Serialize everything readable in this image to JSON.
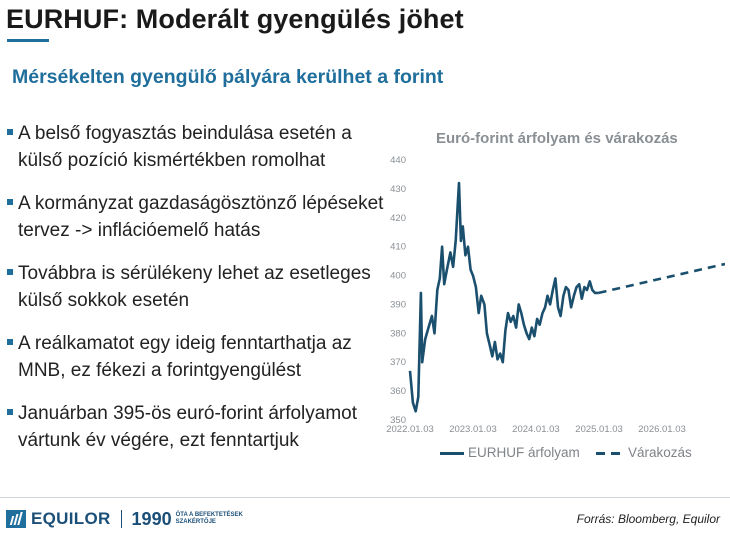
{
  "slide": {
    "title": "EURHUF: Moderált gyengülés jöhet",
    "subtitle": "Mérsékelten gyengülő pályára kerülhet a forint",
    "bullets": [
      "A belső fogyasztás beindulása esetén a külső pozíció kismértékben romolhat",
      "A kormányzat gazdaságösztönző lépéseket tervez -> inflációemelő hatás",
      "Továbbra is sérülékeny lehet az esetleges külső sokkok esetén",
      "A reálkamatot egy ideig fenntarthatja az MNB, ez fékezi a forintgyengülést",
      "Januárban 395-ös euró-forint árfolyamot vártunk év végére, ezt fenntartjuk"
    ]
  },
  "footer": {
    "brand": "EQUILOR",
    "year": "1990",
    "tagline_1": "ÓTA A BEFEKTETÉSEK",
    "tagline_2": "SZAKÉRTŐJE",
    "source": "Forrás: Bloomberg, Equilor"
  },
  "chart_data": {
    "type": "line",
    "title": "Euró-forint árfolyam és várakozás",
    "x_ticks": [
      "2022.01.03",
      "2023.01.03",
      "2024.01.03",
      "2025.01.03",
      "2026.01.03"
    ],
    "y_ticks": [
      350,
      360,
      370,
      380,
      390,
      400,
      410,
      420,
      430,
      440
    ],
    "ylim": [
      350,
      440
    ],
    "xlim": [
      "2022.01.03",
      "2027.01.03"
    ],
    "grid": false,
    "colors": {
      "history": "#1b4f6e",
      "forecast": "#1b4f6e"
    },
    "series": [
      {
        "name": "EURHUF árfolyam",
        "style": "solid",
        "points": [
          [
            "2022.01.03",
            367
          ],
          [
            "2022.01.20",
            356
          ],
          [
            "2022.02.05",
            353
          ],
          [
            "2022.02.20",
            358
          ],
          [
            "2022.03.07",
            394
          ],
          [
            "2022.03.15",
            370
          ],
          [
            "2022.04.01",
            378
          ],
          [
            "2022.04.20",
            382
          ],
          [
            "2022.05.10",
            386
          ],
          [
            "2022.05.25",
            380
          ],
          [
            "2022.06.10",
            395
          ],
          [
            "2022.06.25",
            399
          ],
          [
            "2022.07.08",
            410
          ],
          [
            "2022.07.20",
            397
          ],
          [
            "2022.08.05",
            402
          ],
          [
            "2022.08.25",
            408
          ],
          [
            "2022.09.10",
            403
          ],
          [
            "2022.09.25",
            412
          ],
          [
            "2022.10.07",
            425
          ],
          [
            "2022.10.14",
            432
          ],
          [
            "2022.10.25",
            412
          ],
          [
            "2022.11.05",
            417
          ],
          [
            "2022.11.20",
            407
          ],
          [
            "2022.12.05",
            410
          ],
          [
            "2022.12.20",
            402
          ],
          [
            "2023.01.03",
            400
          ],
          [
            "2023.01.20",
            396
          ],
          [
            "2023.02.05",
            387
          ],
          [
            "2023.02.20",
            393
          ],
          [
            "2023.03.10",
            390
          ],
          [
            "2023.03.25",
            380
          ],
          [
            "2023.04.10",
            376
          ],
          [
            "2023.04.25",
            372
          ],
          [
            "2023.05.10",
            377
          ],
          [
            "2023.05.25",
            371
          ],
          [
            "2023.06.10",
            373
          ],
          [
            "2023.06.25",
            370
          ],
          [
            "2023.07.10",
            381
          ],
          [
            "2023.07.25",
            387
          ],
          [
            "2023.08.10",
            384
          ],
          [
            "2023.08.25",
            386
          ],
          [
            "2023.09.10",
            382
          ],
          [
            "2023.09.25",
            390
          ],
          [
            "2023.10.10",
            387
          ],
          [
            "2023.10.25",
            383
          ],
          [
            "2023.11.10",
            380
          ],
          [
            "2023.11.25",
            378
          ],
          [
            "2023.12.10",
            382
          ],
          [
            "2023.12.25",
            379
          ],
          [
            "2024.01.10",
            385
          ],
          [
            "2024.01.25",
            383
          ],
          [
            "2024.02.10",
            387
          ],
          [
            "2024.02.25",
            389
          ],
          [
            "2024.03.10",
            393
          ],
          [
            "2024.03.25",
            390
          ],
          [
            "2024.04.10",
            395
          ],
          [
            "2024.04.25",
            399
          ],
          [
            "2024.05.10",
            389
          ],
          [
            "2024.05.25",
            386
          ],
          [
            "2024.06.10",
            393
          ],
          [
            "2024.06.25",
            396
          ],
          [
            "2024.07.10",
            395
          ],
          [
            "2024.07.25",
            389
          ],
          [
            "2024.08.10",
            393
          ],
          [
            "2024.08.25",
            396
          ],
          [
            "2024.09.10",
            397
          ],
          [
            "2024.09.25",
            392
          ],
          [
            "2024.10.10",
            396
          ],
          [
            "2024.10.25",
            395
          ],
          [
            "2024.11.10",
            398
          ],
          [
            "2024.11.25",
            395
          ],
          [
            "2024.12.10",
            394
          ],
          [
            "2024.12.31",
            394
          ]
        ]
      },
      {
        "name": "Várakozás",
        "style": "dashed",
        "points": [
          [
            "2024.12.31",
            394
          ],
          [
            "2027.01.03",
            404
          ]
        ]
      }
    ],
    "legend": {
      "placement": "bottom"
    }
  }
}
